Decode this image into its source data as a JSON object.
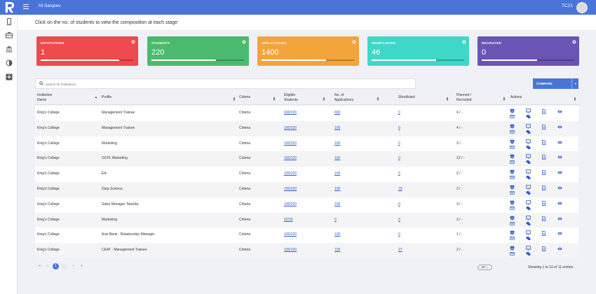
{
  "header": {
    "greeting": "Hi Sanjeev",
    "code": "TC21"
  },
  "info": "Click on the no. of students to view the composition at each stage",
  "cards": [
    {
      "title": "INSTITUTIONS",
      "value": "1",
      "progress": 0.85,
      "color": "#ef4a4d"
    },
    {
      "title": "STUDENTS",
      "value": "220",
      "progress": 0.7,
      "color": "#4cba6e"
    },
    {
      "title": "APPLICATIONS",
      "value": "1400",
      "progress": 0.7,
      "color": "#f3a43a"
    },
    {
      "title": "SHORTLISTED",
      "value": "46",
      "progress": 0.7,
      "color": "#3fd8c8"
    },
    {
      "title": "RECRUITED",
      "value": "0",
      "progress": 0.6,
      "color": "#6a55b4"
    }
  ],
  "search": {
    "placeholder": "Search for Institutions"
  },
  "compare": {
    "label": "COMPARE"
  },
  "table": {
    "headers": {
      "institution_1": "Institution",
      "institution_2": "Name",
      "profile": "Profile",
      "criteria": "Criteria",
      "eligible_1": "Eligible",
      "eligible_2": "Students",
      "applications_1": "No. of",
      "applications_2": "Applications",
      "shortlisted": "Shortlisted",
      "planned_1": "Planned /",
      "planned_2": "Recruited",
      "actions": "Actions"
    },
    "rows": [
      {
        "institution": "King's College",
        "profile": "Management Trainee",
        "criteria": "Criteria",
        "eligible": "600/220",
        "applications": "600",
        "shortlisted": "0",
        "planned": "4 / -"
      },
      {
        "institution": "King's College",
        "profile": "Management Trainee",
        "criteria": "Criteria",
        "eligible": "100/220",
        "applications": "100",
        "shortlisted": "0",
        "planned": "4 / -"
      },
      {
        "institution": "King's College",
        "profile": "Marketing",
        "criteria": "Criteria",
        "eligible": "100/220",
        "applications": "100",
        "shortlisted": "0",
        "planned": "3 / -"
      },
      {
        "institution": "King's College",
        "profile": "GCPL Marketing",
        "criteria": "Criteria",
        "eligible": "100/220",
        "applications": "100",
        "shortlisted": "0",
        "planned": "12 / -"
      },
      {
        "institution": "King's College",
        "profile": "EA",
        "criteria": "Criteria",
        "eligible": "100/220",
        "applications": "100",
        "shortlisted": "0",
        "planned": "2 / -"
      },
      {
        "institution": "King's College",
        "profile": "Data Science",
        "criteria": "Criteria",
        "eligible": "100/220",
        "applications": "100",
        "shortlisted": "19",
        "planned": "3 / -"
      },
      {
        "institution": "King's College",
        "profile": "Sales Manager TataSky",
        "criteria": "Criteria",
        "eligible": "100/220",
        "applications": "100",
        "shortlisted": "0",
        "planned": "3 / -"
      },
      {
        "institution": "King's College",
        "profile": "Marketing",
        "criteria": "Criteria",
        "eligible": "0/220",
        "applications": "0",
        "shortlisted": "0",
        "planned": "3 / -"
      },
      {
        "institution": "King's College",
        "profile": "Axis Bank - Relationship Manager",
        "criteria": "Criteria",
        "eligible": "100/220",
        "applications": "100",
        "shortlisted": "0",
        "planned": "1 / -"
      },
      {
        "institution": "King's College",
        "profile": "CEAT - Management Trainee",
        "criteria": "Criteria",
        "eligible": "100/220",
        "applications": "100",
        "shortlisted": "27",
        "planned": "2 / -"
      }
    ]
  },
  "pagination": {
    "current": "1",
    "page_size": "10",
    "showing": "Showing 1 to 10 of 11 entries"
  },
  "colors": {
    "primary": "#4a74d8",
    "link": "#2f5bc8"
  }
}
